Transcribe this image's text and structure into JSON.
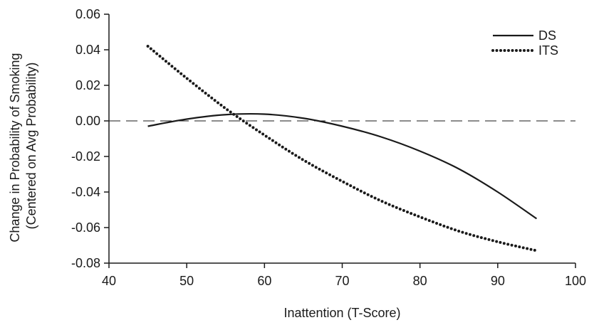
{
  "chart_data": {
    "type": "line",
    "xlabel": "Inattention (T-Score)",
    "ylabel_lines": [
      "Change in Probability of Smoking",
      "(Centered on Avg Probability)"
    ],
    "xlim": [
      40,
      100
    ],
    "ylim": [
      -0.08,
      0.06
    ],
    "xticks": [
      40,
      50,
      60,
      70,
      80,
      90,
      100
    ],
    "yticks": [
      -0.08,
      -0.06,
      -0.04,
      -0.02,
      0.0,
      0.02,
      0.04,
      0.06
    ],
    "ytick_labels": [
      "-0.08",
      "-0.06",
      "-0.04",
      "-0.02",
      "0.00",
      "0.02",
      "0.04",
      "0.06"
    ],
    "reference_line": {
      "y": 0,
      "style": "dashed"
    },
    "legend_position": "top-right",
    "grid": false,
    "series": [
      {
        "name": "DS",
        "style": "solid",
        "color": "#1a1a1a",
        "x": [
          45,
          50,
          55,
          60,
          65,
          70,
          75,
          80,
          85,
          90,
          95
        ],
        "y": [
          -0.003,
          0.001,
          0.0035,
          0.0038,
          0.0015,
          -0.003,
          -0.009,
          -0.017,
          -0.027,
          -0.04,
          -0.055
        ]
      },
      {
        "name": "ITS",
        "style": "dotted",
        "color": "#1a1a1a",
        "x": [
          45,
          50,
          55,
          60,
          65,
          70,
          75,
          80,
          85,
          90,
          95
        ],
        "y": [
          0.042,
          0.024,
          0.007,
          -0.008,
          -0.022,
          -0.034,
          -0.045,
          -0.054,
          -0.062,
          -0.068,
          -0.073
        ]
      }
    ]
  }
}
